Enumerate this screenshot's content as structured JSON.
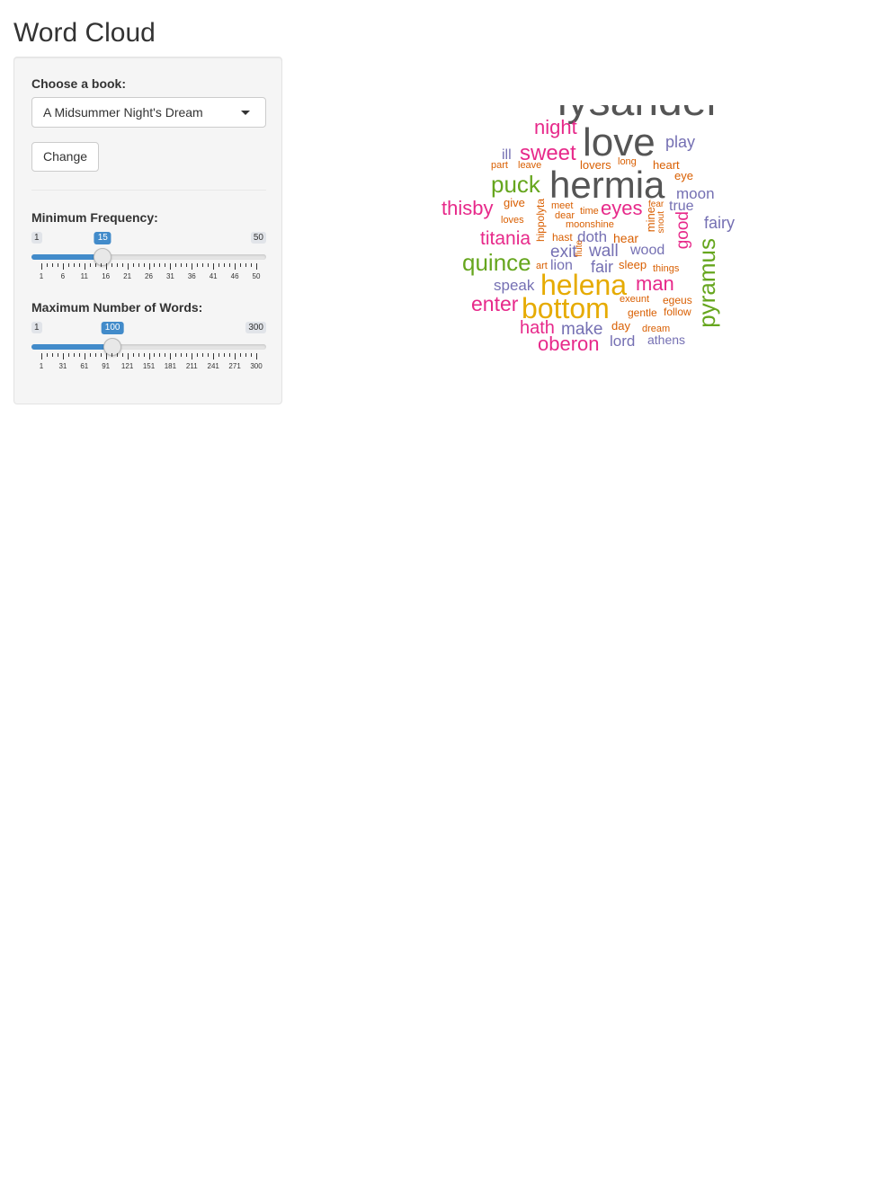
{
  "title": "Word Cloud",
  "sidebar": {
    "book_label": "Choose a book:",
    "book_selected": "A Midsummer Night's Dream",
    "change_button": "Change",
    "min_freq": {
      "label": "Minimum Frequency:",
      "min": "1",
      "max": "50",
      "value": "15",
      "value_num": 15,
      "range": [
        1,
        50
      ],
      "ticks": [
        "1",
        "6",
        "11",
        "16",
        "21",
        "26",
        "31",
        "36",
        "41",
        "46",
        "50"
      ]
    },
    "max_words": {
      "label": "Maximum Number of Words:",
      "min": "1",
      "max": "300",
      "value": "100",
      "value_num": 100,
      "range": [
        1,
        300
      ],
      "ticks": [
        "1",
        "31",
        "61",
        "91",
        "121",
        "151",
        "181",
        "211",
        "241",
        "271",
        "300"
      ]
    }
  },
  "colors": {
    "accent": "#428bca",
    "dark": "#555555",
    "pink": "#e7298a",
    "green": "#66a61e",
    "orange": "#d95f02",
    "purple": "#7570b3",
    "gold": "#e6ab02"
  },
  "wordcloud": [
    {
      "text": "lysander",
      "color": "dark"
    },
    {
      "text": "night",
      "color": "pink"
    },
    {
      "text": "love",
      "color": "dark"
    },
    {
      "text": "play",
      "color": "purple"
    },
    {
      "text": "ill",
      "color": "purple"
    },
    {
      "text": "sweet",
      "color": "pink"
    },
    {
      "text": "part",
      "color": "orange"
    },
    {
      "text": "leave",
      "color": "orange"
    },
    {
      "text": "lovers",
      "color": "orange"
    },
    {
      "text": "long",
      "color": "orange"
    },
    {
      "text": "heart",
      "color": "orange"
    },
    {
      "text": "eye",
      "color": "orange"
    },
    {
      "text": "puck",
      "color": "green"
    },
    {
      "text": "hermia",
      "color": "dark"
    },
    {
      "text": "moon",
      "color": "purple"
    },
    {
      "text": "thisby",
      "color": "pink"
    },
    {
      "text": "give",
      "color": "orange"
    },
    {
      "text": "meet",
      "color": "orange"
    },
    {
      "text": "time",
      "color": "orange"
    },
    {
      "text": "eyes",
      "color": "pink"
    },
    {
      "text": "fear",
      "color": "orange"
    },
    {
      "text": "true",
      "color": "purple"
    },
    {
      "text": "fairy",
      "color": "purple"
    },
    {
      "text": "loves",
      "color": "orange"
    },
    {
      "text": "dear",
      "color": "orange"
    },
    {
      "text": "hippolyta",
      "color": "orange"
    },
    {
      "text": "moonshine",
      "color": "orange"
    },
    {
      "text": "mine",
      "color": "orange"
    },
    {
      "text": "snout",
      "color": "orange"
    },
    {
      "text": "good",
      "color": "pink"
    },
    {
      "text": "titania",
      "color": "pink"
    },
    {
      "text": "hast",
      "color": "orange"
    },
    {
      "text": "doth",
      "color": "purple"
    },
    {
      "text": "hear",
      "color": "orange"
    },
    {
      "text": "exit",
      "color": "purple"
    },
    {
      "text": "flute",
      "color": "orange"
    },
    {
      "text": "wall",
      "color": "purple"
    },
    {
      "text": "wood",
      "color": "purple"
    },
    {
      "text": "pyramus",
      "color": "green"
    },
    {
      "text": "quince",
      "color": "green"
    },
    {
      "text": "art",
      "color": "orange"
    },
    {
      "text": "lion",
      "color": "purple"
    },
    {
      "text": "fair",
      "color": "purple"
    },
    {
      "text": "sleep",
      "color": "orange"
    },
    {
      "text": "things",
      "color": "orange"
    },
    {
      "text": "speak",
      "color": "purple"
    },
    {
      "text": "helena",
      "color": "gold"
    },
    {
      "text": "man",
      "color": "pink"
    },
    {
      "text": "enter",
      "color": "pink"
    },
    {
      "text": "exeunt",
      "color": "orange"
    },
    {
      "text": "egeus",
      "color": "orange"
    },
    {
      "text": "bottom",
      "color": "gold"
    },
    {
      "text": "gentle",
      "color": "orange"
    },
    {
      "text": "follow",
      "color": "orange"
    },
    {
      "text": "hath",
      "color": "pink"
    },
    {
      "text": "make",
      "color": "purple"
    },
    {
      "text": "day",
      "color": "orange"
    },
    {
      "text": "dream",
      "color": "orange"
    },
    {
      "text": "oberon",
      "color": "pink"
    },
    {
      "text": "lord",
      "color": "purple"
    },
    {
      "text": "athens",
      "color": "purple"
    }
  ]
}
